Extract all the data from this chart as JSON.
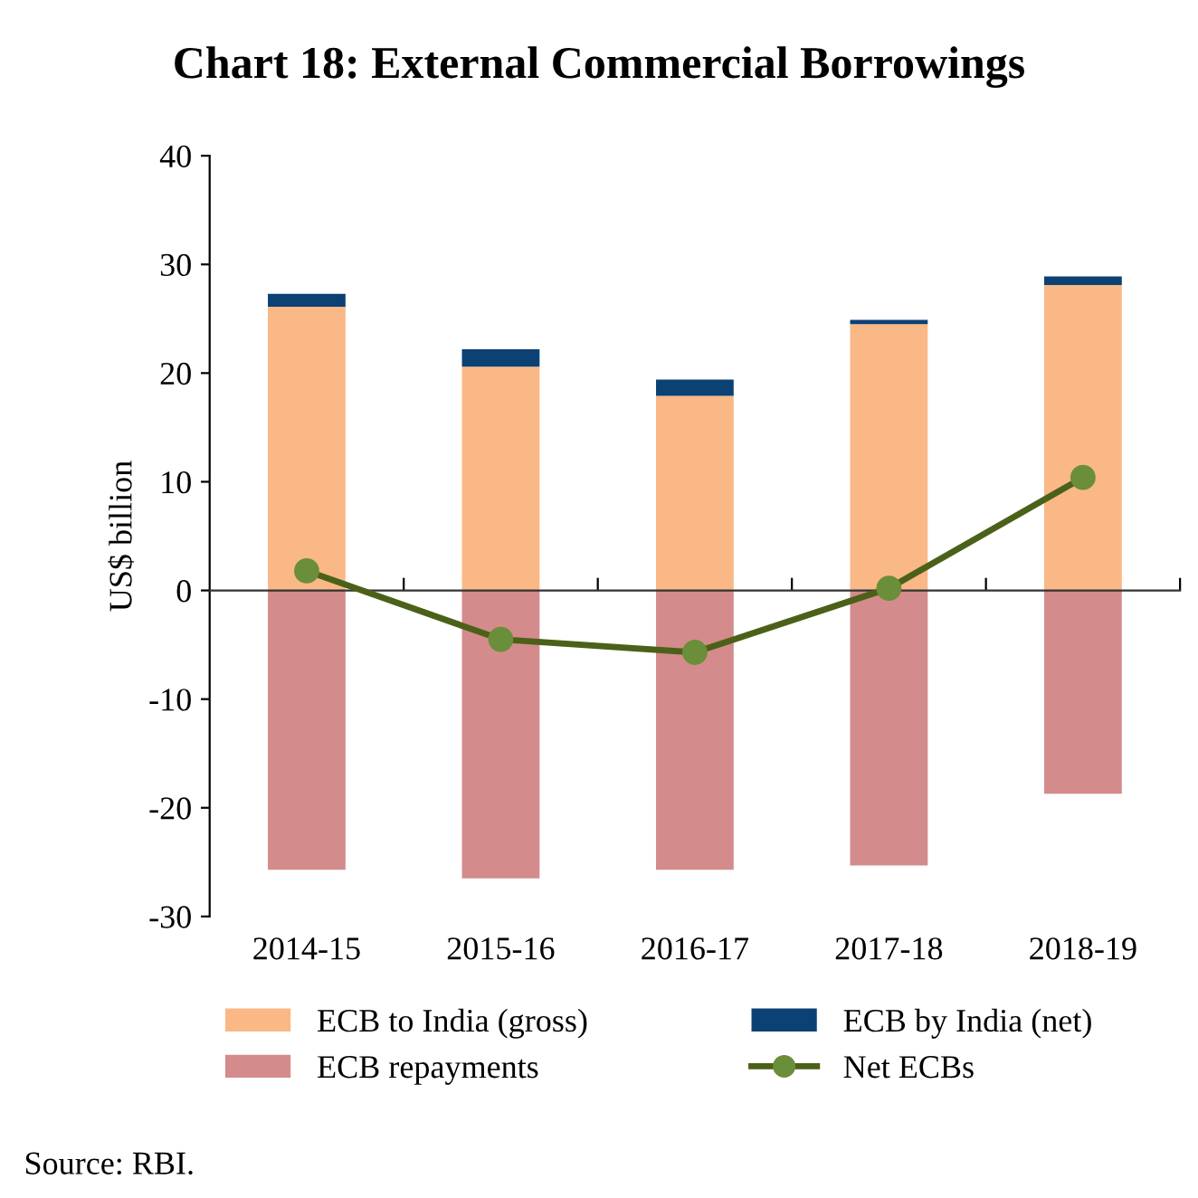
{
  "chart_data": {
    "type": "bar",
    "title": "Chart 18: External Commercial Borrowings",
    "ylabel": "US$ billion",
    "categories": [
      "2014-15",
      "2015-16",
      "2016-17",
      "2017-18",
      "2018-19"
    ],
    "stacked": true,
    "series": [
      {
        "name": "ECB to India (gross)",
        "color": "#f9b886",
        "values": [
          26.1,
          20.6,
          17.9,
          24.5,
          28.1
        ]
      },
      {
        "name": "ECB by India (net)",
        "color": "#0c4174",
        "values": [
          1.2,
          1.6,
          1.5,
          0.4,
          0.8
        ]
      },
      {
        "name": "ECB repayments",
        "color": "#d48b8b",
        "values": [
          -25.7,
          -26.5,
          -25.7,
          -25.3,
          -18.7
        ]
      },
      {
        "name": "Net ECBs",
        "type": "line",
        "color": "#4b6119",
        "marker": "circle",
        "values": [
          1.8,
          -4.5,
          -5.7,
          0.2,
          10.4
        ]
      }
    ],
    "ylim": [
      -30,
      40
    ],
    "yticks": [
      -30,
      -20,
      -10,
      0,
      10,
      20,
      30,
      40
    ],
    "legend": "bottom",
    "annotations": [
      "Source: RBI."
    ]
  }
}
